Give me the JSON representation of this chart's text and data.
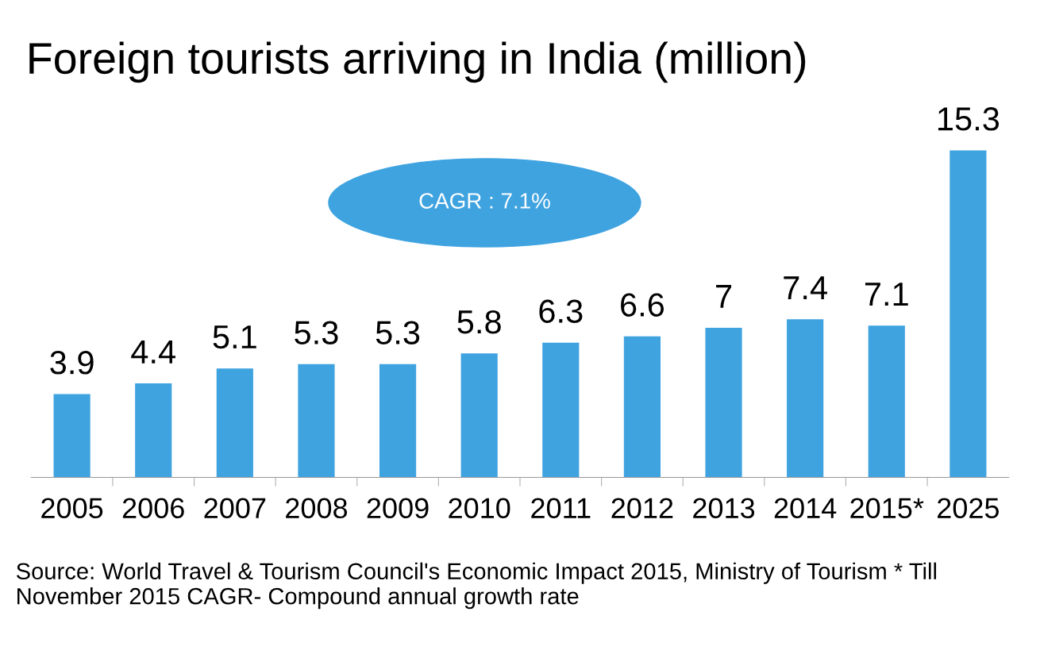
{
  "chart_data": {
    "type": "bar",
    "title": "Foreign tourists arriving in India (million)",
    "categories": [
      "2005",
      "2006",
      "2007",
      "2008",
      "2009",
      "2010",
      "2011",
      "2012",
      "2013",
      "2014",
      "2015*",
      "2025"
    ],
    "values": [
      3.9,
      4.4,
      5.1,
      5.3,
      5.3,
      5.8,
      6.3,
      6.6,
      7,
      7.4,
      7.1,
      15.3
    ],
    "color": "#3fa3e0",
    "data_labels": true,
    "grid": false,
    "legend": false,
    "tick_labels": "x",
    "annotations": [
      "CAGR : 7.1%",
      "Source: World Travel & Tourism Council's Economic Impact 2015, Ministry of Tourism * Till November 2015 CAGR- Compound annual growth rate"
    ]
  }
}
